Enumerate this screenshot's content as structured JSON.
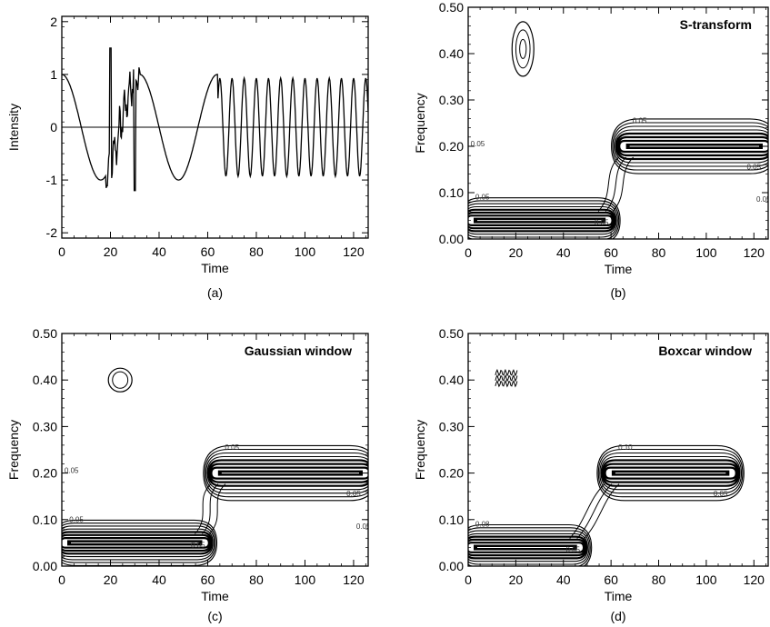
{
  "chart_data": [
    {
      "type": "line",
      "panel_caption": "(a)",
      "title": "",
      "xlabel": "Time",
      "ylabel": "Intensity",
      "xlim": [
        0,
        126
      ],
      "ylim": [
        -2.1,
        2.1
      ],
      "xticks": [
        0,
        20,
        40,
        60,
        80,
        100,
        120
      ],
      "yticks": [
        -2,
        -1,
        0,
        1,
        2
      ],
      "series": [
        {
          "color": "#000000",
          "segments": [
            {
              "x_range": [
                0,
                18
              ],
              "period": 32,
              "amplitude": 1.0
            },
            {
              "x_range": [
                18,
                32
              ],
              "period": 32,
              "amplitude": 1.0,
              "noise": "visible jagged spikes, peak ~1.5 at x=20, trough ~-1.2 at x=30"
            },
            {
              "x_range": [
                32,
                64
              ],
              "period": 32,
              "amplitude": 1.0
            },
            {
              "x_range": [
                64,
                126
              ],
              "period": 5,
              "amplitude": 0.93
            }
          ]
        }
      ]
    },
    {
      "type": "contour",
      "panel_caption": "(b)",
      "title": "S-transform",
      "xlabel": "Time",
      "ylabel": "Frequency",
      "xlim": [
        0,
        126
      ],
      "ylim": [
        0,
        0.5
      ],
      "xticks": [
        0,
        20,
        40,
        60,
        80,
        100,
        120
      ],
      "yticks": [
        0.0,
        0.1,
        0.2,
        0.3,
        0.4,
        0.5
      ],
      "ytick_labels": [
        "0.00",
        "0.10",
        "0.20",
        "0.30",
        "0.40",
        "0.50"
      ],
      "contour_levels": [
        0.05,
        0.15,
        0.25,
        0.35,
        0.45,
        0.55,
        0.65
      ],
      "contour_labels": [
        "0.05",
        "0.05",
        "0.05",
        "0.05",
        "0.05",
        "0.05"
      ],
      "features": [
        {
          "x_range": [
            0,
            60
          ],
          "freq": 0.04,
          "kind": "low-frequency band"
        },
        {
          "x_range": [
            64,
            126
          ],
          "freq": 0.2,
          "kind": "high-frequency band"
        },
        {
          "x": 23,
          "freq": 0.41,
          "kind": "spike blob"
        }
      ]
    },
    {
      "type": "contour",
      "panel_caption": "(c)",
      "title": "Gaussian window",
      "xlabel": "Time",
      "ylabel": "Frequency",
      "xlim": [
        0,
        126
      ],
      "ylim": [
        0,
        0.5
      ],
      "xticks": [
        0,
        20,
        40,
        60,
        80,
        100,
        120
      ],
      "yticks": [
        0.0,
        0.1,
        0.2,
        0.3,
        0.4,
        0.5
      ],
      "ytick_labels": [
        "0.00",
        "0.10",
        "0.20",
        "0.30",
        "0.40",
        "0.50"
      ],
      "contour_levels": [
        0.05,
        0.15,
        0.25,
        0.35,
        0.45,
        0.55,
        0.65
      ],
      "contour_labels": [
        "0.05",
        "0.05",
        "0.05",
        "0.05",
        "0.05",
        "0.05"
      ],
      "features": [
        {
          "x_range": [
            0,
            60
          ],
          "freq": 0.05,
          "kind": "low-frequency band"
        },
        {
          "x_range": [
            62,
            126
          ],
          "freq": 0.2,
          "kind": "high-frequency band"
        },
        {
          "x": 24,
          "freq": 0.4,
          "kind": "spike blob"
        }
      ]
    },
    {
      "type": "contour",
      "panel_caption": "(d)",
      "title": "Boxcar window",
      "xlabel": "Time",
      "ylabel": "Frequency",
      "xlim": [
        0,
        126
      ],
      "ylim": [
        0,
        0.5
      ],
      "xticks": [
        0,
        20,
        40,
        60,
        80,
        100,
        120
      ],
      "yticks": [
        0.0,
        0.1,
        0.2,
        0.3,
        0.4,
        0.5
      ],
      "ytick_labels": [
        "0.00",
        "0.10",
        "0.20",
        "0.30",
        "0.40",
        "0.50"
      ],
      "contour_levels": [
        0.05,
        0.15,
        0.25,
        0.35,
        0.45,
        0.55,
        0.65
      ],
      "contour_labels": [
        "0.08",
        "0.10",
        "0.05",
        "0.05"
      ],
      "features": [
        {
          "x_range": [
            0,
            48
          ],
          "freq": 0.04,
          "kind": "low-frequency band"
        },
        {
          "x_range": [
            58,
            112
          ],
          "freq": 0.2,
          "kind": "high-frequency band"
        },
        {
          "x": 16,
          "freq": 0.4,
          "kind": "spike wiggles"
        }
      ]
    }
  ]
}
